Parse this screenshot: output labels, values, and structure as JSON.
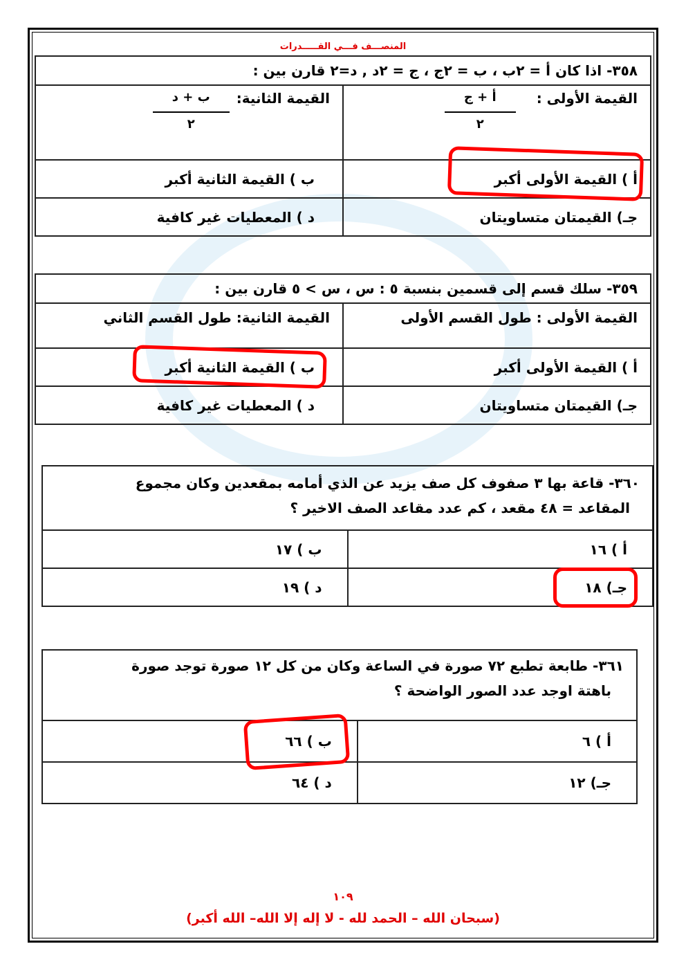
{
  "header": "المنصـــف فـــي القـــــدرات",
  "q358": {
    "title": "٣٥٨-  اذا كان أ = ٢ب ، ب = ٢ج ، ج = ٢د   ,   د=٢ قارن بين :",
    "first_label": "القيمة الأولى :",
    "first_num": "أ + ج",
    "first_den": "٢",
    "second_label": "القيمة الثانية:",
    "second_num": "ب + د",
    "second_den": "٢",
    "a": "أ ) القيمة الأولى أكبر",
    "b": "ب ) القيمة الثانية أكبر",
    "c": "جـ) القيمتان متساويتان",
    "d": "د  ) المعطيات غير كافية",
    "marked": "a"
  },
  "q359": {
    "title": "٣٥٩- سلك قسم إلى قسمين بنسبة ٥ : س ، س > ٥   قارن بين :",
    "first": "القيمة الأولى :  طول القسم الأولى",
    "second": "القيمة الثانية: طول القسم الثاني",
    "a": "أ ) القيمة الأولى أكبر",
    "b": "ب ) القيمة الثانية أكبر",
    "c": "جـ) القيمتان متساويتان",
    "d": "د  ) المعطيات غير كافية",
    "marked": "b"
  },
  "q360": {
    "line1": "٣٦٠- قاعة  بها ٣ صفوف كل صف يزيد عن الذي أمامه بمقعدين  وكان مجموع",
    "line2": "المقاعد = ٤٨ مقعد ، كم عدد مقاعد الصف الاخير ؟",
    "a": "أ ) ١٦",
    "b": "ب ) ١٧",
    "c": "جـ) ١٨",
    "d": "د  ) ١٩",
    "marked": "c"
  },
  "q361": {
    "line1": "٣٦١-  طابعة تطبع ٧٢ صورة في الساعة وكان من كل ١٢ صورة توجد صورة",
    "line2": "باهتة اوجد عدد الصور الواضحة ؟",
    "a": "أ ) ٦",
    "b": "ب ) ٦٦",
    "c": "جـ) ١٢",
    "d": "د  ) ٦٤",
    "marked": "b"
  },
  "page_number": "١٠٩",
  "footer": "(سبحان الله – الحمد لله - لا إله إلا الله– الله أكبر)",
  "colors": {
    "accent": "#e00000",
    "mark": "#ff0000"
  }
}
